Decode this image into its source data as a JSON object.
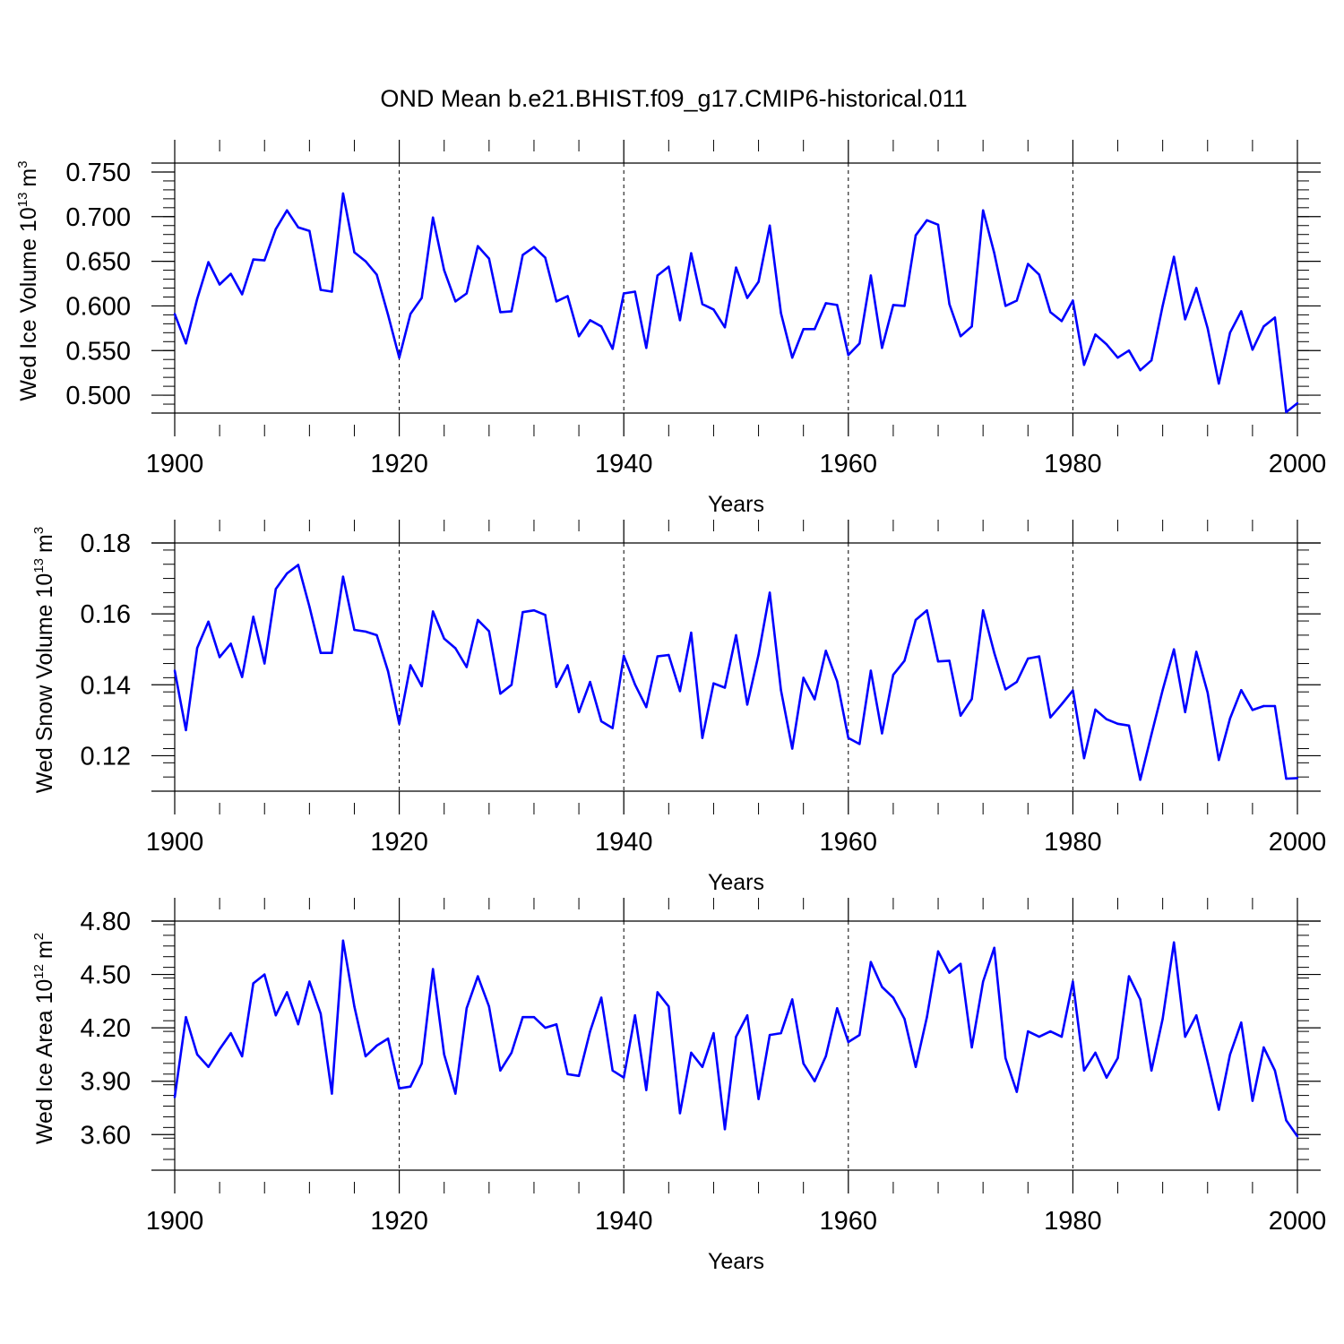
{
  "chart_data": {
    "type": "line",
    "title": "OND Mean b.e21.BHIST.f09_g17.CMIP6-historical.011",
    "line_color": "#0000ff",
    "gridline_color": "#000000",
    "panels": [
      {
        "name": "ice-volume",
        "ylabel_main": "Wed Ice Volume 10",
        "ylabel_exp": "13",
        "ylabel_unit": "m",
        "ylabel_unit_exp": "3",
        "xlabel": "Years",
        "xlim": [
          1900,
          2000
        ],
        "ylim": [
          0.48,
          0.76
        ],
        "yticks": [
          0.5,
          0.55,
          0.6,
          0.65,
          0.7,
          0.75
        ],
        "ytick_labels": [
          "0.500",
          "0.550",
          "0.600",
          "0.650",
          "0.700",
          "0.750"
        ],
        "xticks": [
          1900,
          1920,
          1940,
          1960,
          1980,
          2000
        ],
        "xtick_labels": [
          "1900",
          "1920",
          "1940",
          "1960",
          "1980",
          "2000"
        ],
        "x": [
          1900,
          1901,
          1902,
          1903,
          1904,
          1905,
          1906,
          1907,
          1908,
          1909,
          1910,
          1911,
          1912,
          1913,
          1914,
          1915,
          1916,
          1917,
          1918,
          1919,
          1920,
          1921,
          1922,
          1923,
          1924,
          1925,
          1926,
          1927,
          1928,
          1929,
          1930,
          1931,
          1932,
          1933,
          1934,
          1935,
          1936,
          1937,
          1938,
          1939,
          1940,
          1941,
          1942,
          1943,
          1944,
          1945,
          1946,
          1947,
          1948,
          1949,
          1950,
          1951,
          1952,
          1953,
          1954,
          1955,
          1956,
          1957,
          1958,
          1959,
          1960,
          1961,
          1962,
          1963,
          1964,
          1965,
          1966,
          1967,
          1968,
          1969,
          1970,
          1971,
          1972,
          1973,
          1974,
          1975,
          1976,
          1977,
          1978,
          1979,
          1980,
          1981,
          1982,
          1983,
          1984,
          1985,
          1986,
          1987,
          1988,
          1989,
          1990,
          1991,
          1992,
          1993,
          1994,
          1995,
          1996,
          1997,
          1998,
          1999,
          2000
        ],
        "values": [
          0.591,
          0.558,
          0.608,
          0.649,
          0.624,
          0.636,
          0.613,
          0.652,
          0.651,
          0.686,
          0.707,
          0.688,
          0.684,
          0.618,
          0.616,
          0.726,
          0.66,
          0.65,
          0.635,
          0.59,
          0.542,
          0.591,
          0.609,
          0.699,
          0.64,
          0.605,
          0.614,
          0.667,
          0.653,
          0.593,
          0.594,
          0.657,
          0.666,
          0.654,
          0.605,
          0.611,
          0.566,
          0.584,
          0.577,
          0.552,
          0.614,
          0.616,
          0.553,
          0.634,
          0.644,
          0.584,
          0.659,
          0.602,
          0.596,
          0.576,
          0.643,
          0.609,
          0.627,
          0.69,
          0.592,
          0.542,
          0.574,
          0.574,
          0.603,
          0.601,
          0.545,
          0.558,
          0.634,
          0.553,
          0.601,
          0.6,
          0.679,
          0.696,
          0.691,
          0.602,
          0.566,
          0.577,
          0.707,
          0.659,
          0.6,
          0.606,
          0.647,
          0.635,
          0.593,
          0.583,
          0.606,
          0.534,
          0.568,
          0.557,
          0.542,
          0.55,
          0.528,
          0.539,
          0.6,
          0.655,
          0.585,
          0.62,
          0.575,
          0.513,
          0.57,
          0.594,
          0.551,
          0.577,
          0.587,
          0.481,
          0.491
        ]
      },
      {
        "name": "snow-volume",
        "ylabel_main": "Wed Snow Volume 10",
        "ylabel_exp": "13",
        "ylabel_unit": "m",
        "ylabel_unit_exp": "3",
        "xlabel": "Years",
        "xlim": [
          1900,
          2000
        ],
        "ylim": [
          0.11,
          0.18
        ],
        "yticks": [
          0.12,
          0.14,
          0.16,
          0.18
        ],
        "ytick_labels": [
          "0.12",
          "0.14",
          "0.16",
          "0.18"
        ],
        "xticks": [
          1900,
          1920,
          1940,
          1960,
          1980,
          2000
        ],
        "xtick_labels": [
          "1900",
          "1920",
          "1940",
          "1960",
          "1980",
          "2000"
        ],
        "x": [
          1900,
          1901,
          1902,
          1903,
          1904,
          1905,
          1906,
          1907,
          1908,
          1909,
          1910,
          1911,
          1912,
          1913,
          1914,
          1915,
          1916,
          1917,
          1918,
          1919,
          1920,
          1921,
          1922,
          1923,
          1924,
          1925,
          1926,
          1927,
          1928,
          1929,
          1930,
          1931,
          1932,
          1933,
          1934,
          1935,
          1936,
          1937,
          1938,
          1939,
          1940,
          1941,
          1942,
          1943,
          1944,
          1945,
          1946,
          1947,
          1948,
          1949,
          1950,
          1951,
          1952,
          1953,
          1954,
          1955,
          1956,
          1957,
          1958,
          1959,
          1960,
          1961,
          1962,
          1963,
          1964,
          1965,
          1966,
          1967,
          1968,
          1969,
          1970,
          1971,
          1972,
          1973,
          1974,
          1975,
          1976,
          1977,
          1978,
          1979,
          1980,
          1981,
          1982,
          1983,
          1984,
          1985,
          1986,
          1987,
          1988,
          1989,
          1990,
          1991,
          1992,
          1993,
          1994,
          1995,
          1996,
          1997,
          1998,
          1999,
          2000
        ],
        "values": [
          0.144,
          0.1272,
          0.1504,
          0.1578,
          0.1478,
          0.1516,
          0.1422,
          0.1592,
          0.146,
          0.167,
          0.1714,
          0.1738,
          0.162,
          0.149,
          0.149,
          0.1705,
          0.1555,
          0.155,
          0.154,
          0.1438,
          0.129,
          0.1455,
          0.1396,
          0.1607,
          0.153,
          0.1503,
          0.145,
          0.1583,
          0.1551,
          0.1375,
          0.14,
          0.1605,
          0.161,
          0.1597,
          0.1394,
          0.1455,
          0.1323,
          0.1408,
          0.1297,
          0.1278,
          0.1482,
          0.1401,
          0.1337,
          0.148,
          0.1484,
          0.1382,
          0.1547,
          0.125,
          0.1404,
          0.1392,
          0.154,
          0.1344,
          0.1485,
          0.166,
          0.1385,
          0.122,
          0.142,
          0.1359,
          0.1496,
          0.141,
          0.125,
          0.1233,
          0.144,
          0.1263,
          0.1428,
          0.1468,
          0.1583,
          0.161,
          0.1466,
          0.1468,
          0.1313,
          0.136,
          0.161,
          0.149,
          0.1387,
          0.1408,
          0.1474,
          0.148,
          0.1308,
          0.1345,
          0.1384,
          0.1193,
          0.133,
          0.1303,
          0.129,
          0.1285,
          0.1132,
          0.126,
          0.1385,
          0.15,
          0.1323,
          0.1493,
          0.1378,
          0.1188,
          0.1305,
          0.1385,
          0.1329,
          0.134,
          0.134,
          0.1135,
          0.1137
        ]
      },
      {
        "name": "ice-area",
        "ylabel_main": "Wed Ice Area 10",
        "ylabel_exp": "12",
        "ylabel_unit": "m",
        "ylabel_unit_exp": "2",
        "xlabel": "Years",
        "xlim": [
          1900,
          2000
        ],
        "ylim": [
          3.4,
          4.8
        ],
        "yticks": [
          3.6,
          3.9,
          4.2,
          4.5,
          4.8
        ],
        "ytick_labels": [
          "3.60",
          "3.90",
          "4.20",
          "4.50",
          "4.80"
        ],
        "xticks": [
          1900,
          1920,
          1940,
          1960,
          1980,
          2000
        ],
        "xtick_labels": [
          "1900",
          "1920",
          "1940",
          "1960",
          "1980",
          "2000"
        ],
        "x": [
          1900,
          1901,
          1902,
          1903,
          1904,
          1905,
          1906,
          1907,
          1908,
          1909,
          1910,
          1911,
          1912,
          1913,
          1914,
          1915,
          1916,
          1917,
          1918,
          1919,
          1920,
          1921,
          1922,
          1923,
          1924,
          1925,
          1926,
          1927,
          1928,
          1929,
          1930,
          1931,
          1932,
          1933,
          1934,
          1935,
          1936,
          1937,
          1938,
          1939,
          1940,
          1941,
          1942,
          1943,
          1944,
          1945,
          1946,
          1947,
          1948,
          1949,
          1950,
          1951,
          1952,
          1953,
          1954,
          1955,
          1956,
          1957,
          1958,
          1959,
          1960,
          1961,
          1962,
          1963,
          1964,
          1965,
          1966,
          1967,
          1968,
          1969,
          1970,
          1971,
          1972,
          1973,
          1974,
          1975,
          1976,
          1977,
          1978,
          1979,
          1980,
          1981,
          1982,
          1983,
          1984,
          1985,
          1986,
          1987,
          1988,
          1989,
          1990,
          1991,
          1992,
          1993,
          1994,
          1995,
          1996,
          1997,
          1998,
          1999,
          2000
        ],
        "values": [
          3.81,
          4.26,
          4.05,
          3.98,
          4.08,
          4.17,
          4.04,
          4.45,
          4.5,
          4.27,
          4.4,
          4.22,
          4.46,
          4.28,
          3.83,
          4.69,
          4.32,
          4.04,
          4.1,
          4.14,
          3.86,
          3.87,
          4.0,
          4.53,
          4.05,
          3.83,
          4.31,
          4.49,
          4.32,
          3.96,
          4.06,
          4.26,
          4.26,
          4.2,
          4.22,
          3.94,
          3.93,
          4.18,
          4.37,
          3.96,
          3.92,
          4.27,
          3.85,
          4.4,
          4.32,
          3.72,
          4.06,
          3.98,
          4.17,
          3.63,
          4.15,
          4.27,
          3.8,
          4.16,
          4.17,
          4.36,
          4.0,
          3.9,
          4.04,
          4.31,
          4.12,
          4.16,
          4.57,
          4.43,
          4.37,
          4.25,
          3.98,
          4.26,
          4.63,
          4.51,
          4.56,
          4.09,
          4.46,
          4.65,
          4.03,
          3.84,
          4.18,
          4.15,
          4.18,
          4.15,
          4.46,
          3.96,
          4.06,
          3.92,
          4.03,
          4.49,
          4.36,
          3.96,
          4.25,
          4.68,
          4.15,
          4.27,
          4.01,
          3.74,
          4.05,
          4.23,
          3.79,
          4.09,
          3.96,
          3.68,
          3.59
        ]
      }
    ]
  }
}
